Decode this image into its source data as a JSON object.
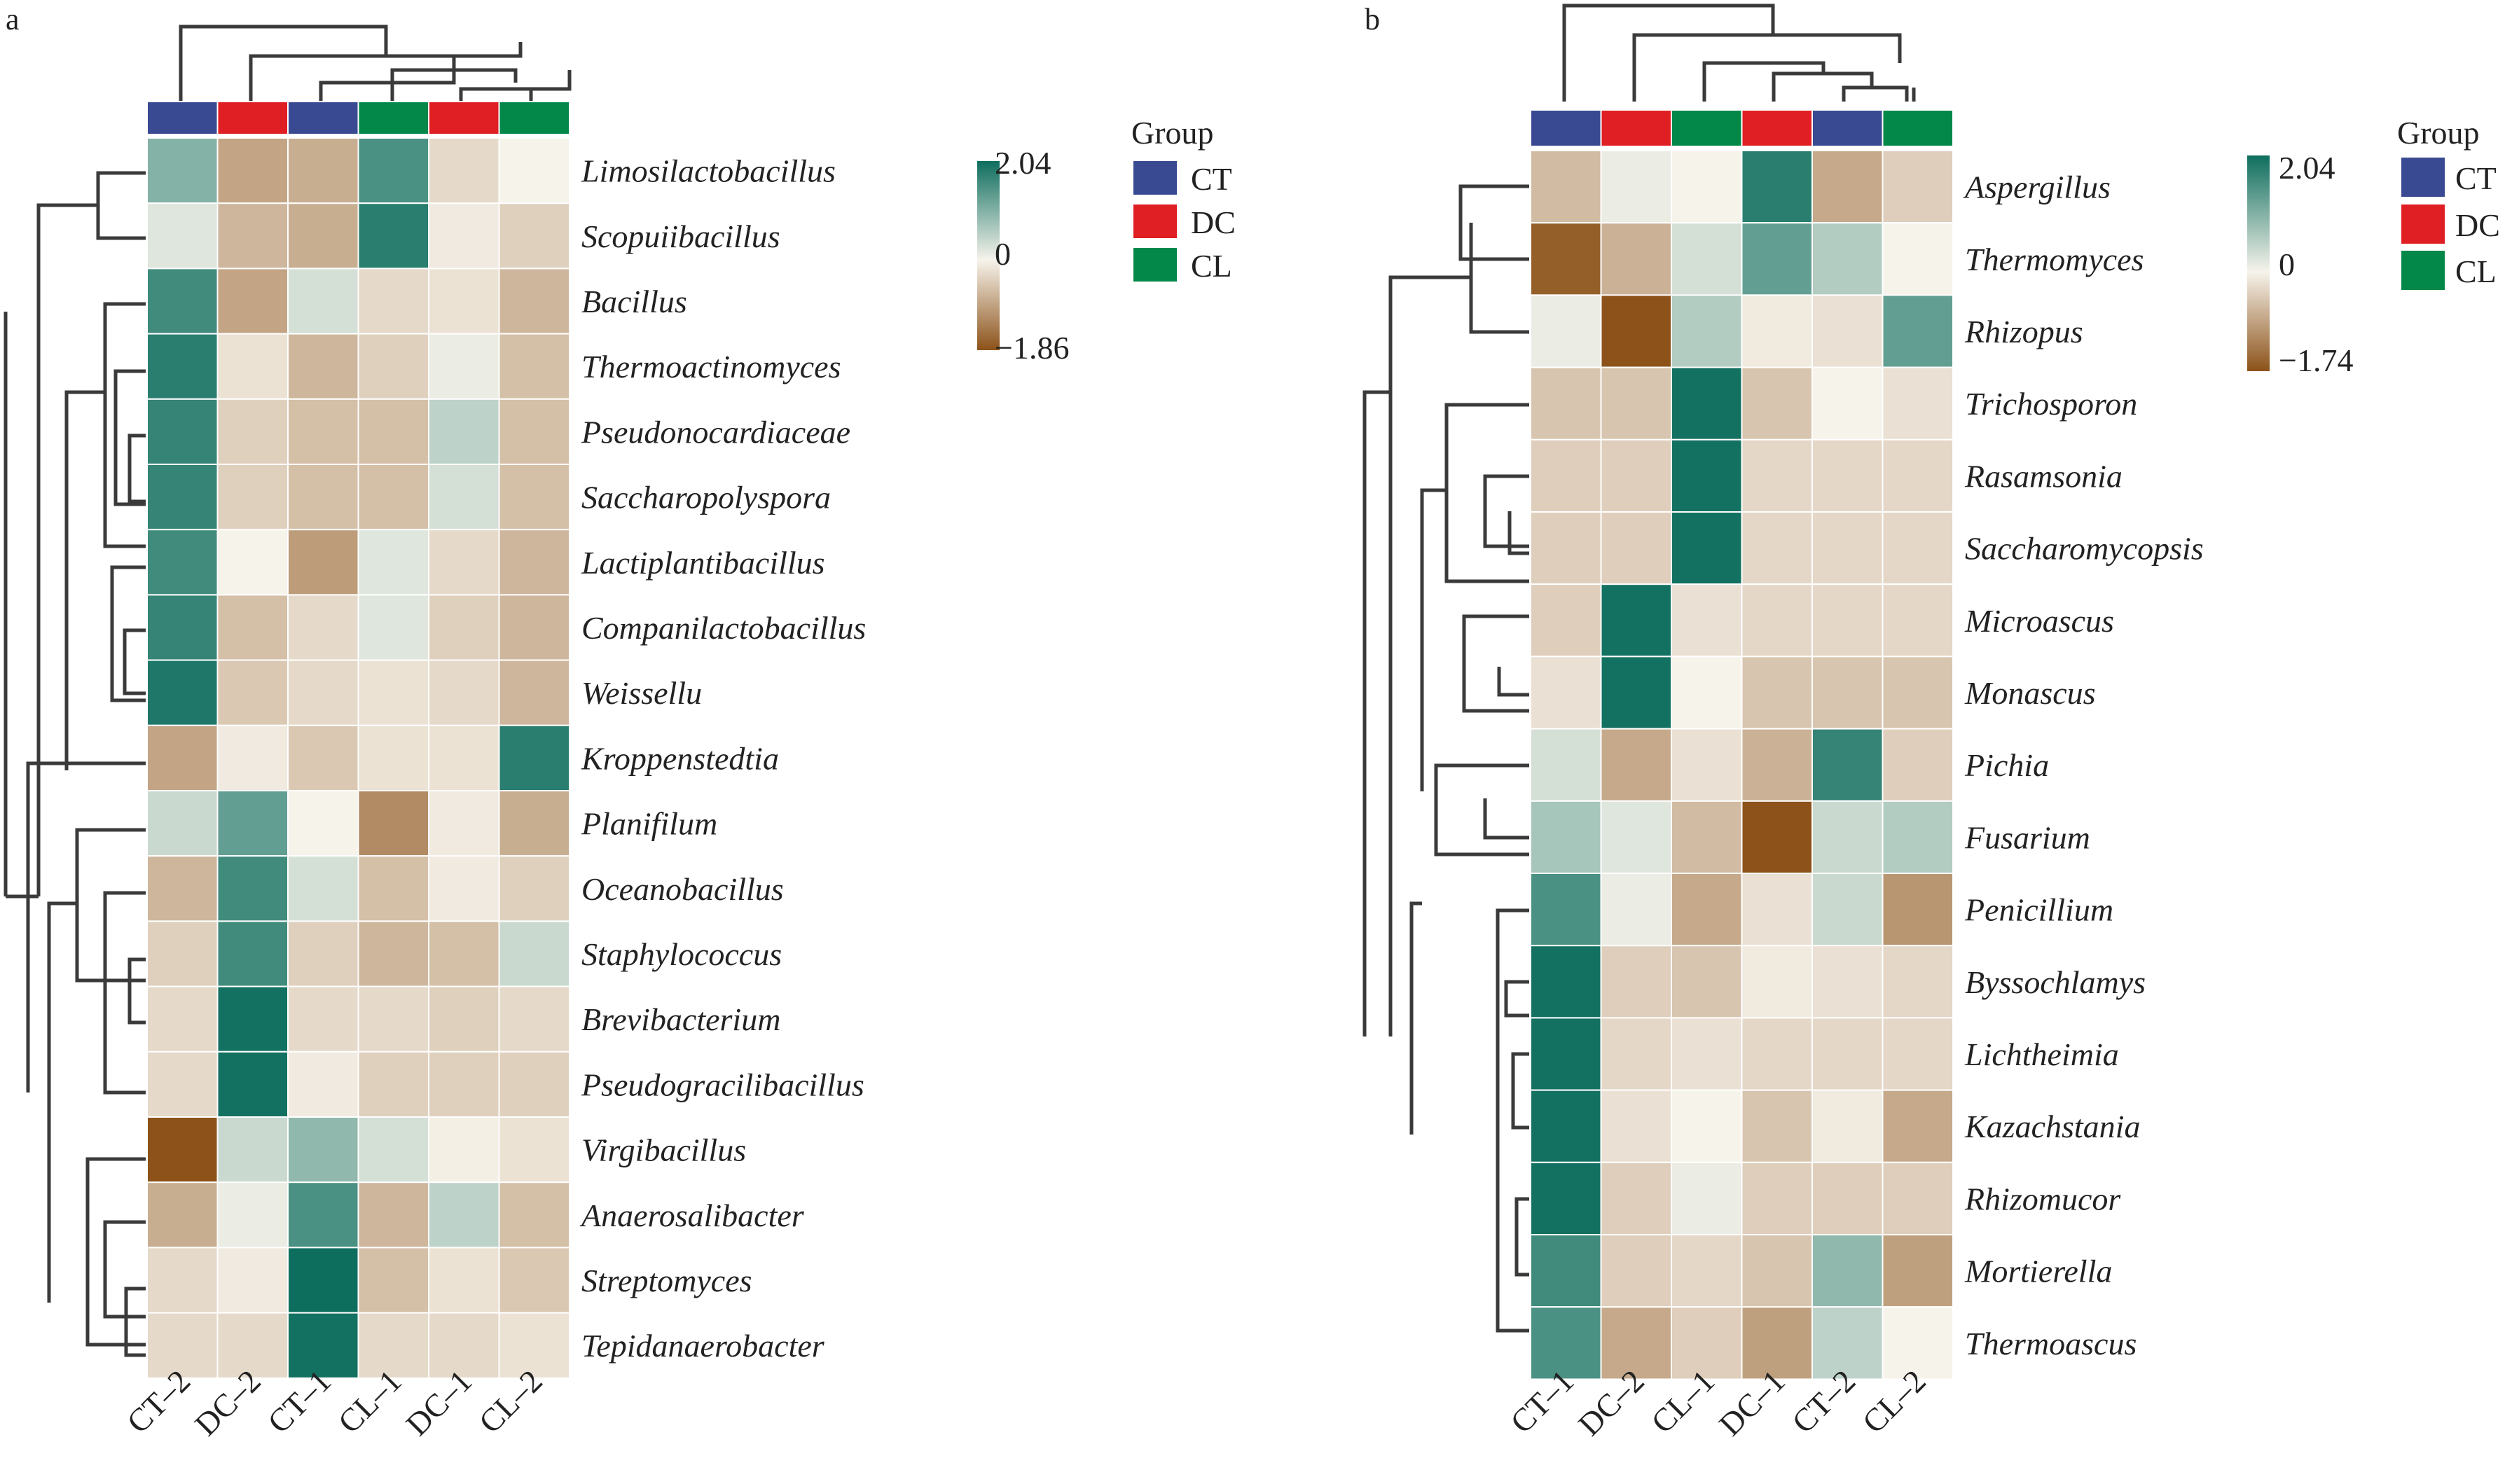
{
  "chart_data": [
    {
      "panel": "a",
      "type": "heatmap",
      "columns": [
        "CT–2",
        "DC–2",
        "CT–1",
        "CL–1",
        "DC–1",
        "CL–2"
      ],
      "column_groups": [
        "CT",
        "DC",
        "CT",
        "CL",
        "DC",
        "CL"
      ],
      "rows": [
        "Limosilactobacillus",
        "Scopuiibacillus",
        "Bacillus",
        "Thermoactinomyces",
        "Pseudonocardiaceae",
        "Saccharopolyspora",
        "Lactiplantibacillus",
        "Companilactobacillus",
        "Weissellu",
        "Kroppenstedtia",
        "Planifilum",
        "Oceanobacillus",
        "Staphylococcus",
        "Brevibacterium",
        "Pseudogracilibacillus",
        "Virgibacillus",
        "Anaerosalibacter",
        "Streptomyces",
        "Tepidanaerobacter"
      ],
      "values": [
        [
          1.0,
          -0.9,
          -0.8,
          1.5,
          -0.3,
          0.0
        ],
        [
          0.2,
          -0.7,
          -0.8,
          1.8,
          -0.1,
          -0.4
        ],
        [
          1.6,
          -0.9,
          0.3,
          -0.3,
          -0.2,
          -0.7
        ],
        [
          1.8,
          -0.2,
          -0.7,
          -0.4,
          0.1,
          -0.6
        ],
        [
          1.7,
          -0.4,
          -0.6,
          -0.6,
          0.5,
          -0.6
        ],
        [
          1.7,
          -0.4,
          -0.6,
          -0.6,
          0.3,
          -0.6
        ],
        [
          1.6,
          0.0,
          -1.0,
          0.2,
          -0.3,
          -0.7
        ],
        [
          1.7,
          -0.6,
          -0.3,
          0.2,
          -0.4,
          -0.7
        ],
        [
          1.9,
          -0.5,
          -0.3,
          -0.2,
          -0.3,
          -0.7
        ],
        [
          -0.9,
          -0.1,
          -0.5,
          -0.2,
          -0.2,
          1.8
        ],
        [
          0.4,
          1.3,
          0.0,
          -1.2,
          -0.1,
          -0.8
        ],
        [
          -0.7,
          1.6,
          0.3,
          -0.6,
          -0.1,
          -0.4
        ],
        [
          -0.4,
          1.6,
          -0.4,
          -0.7,
          -0.6,
          0.4
        ],
        [
          -0.3,
          2.0,
          -0.3,
          -0.3,
          -0.4,
          -0.3
        ],
        [
          -0.3,
          2.0,
          -0.1,
          -0.4,
          -0.4,
          -0.4
        ],
        [
          -1.86,
          0.4,
          0.9,
          0.3,
          -0.05,
          -0.2
        ],
        [
          -0.8,
          0.1,
          1.5,
          -0.7,
          0.5,
          -0.6
        ],
        [
          -0.3,
          -0.1,
          2.04,
          -0.6,
          -0.2,
          -0.5
        ],
        [
          -0.3,
          -0.3,
          2.0,
          -0.3,
          -0.3,
          -0.2
        ]
      ],
      "colorbar": {
        "max": 2.04,
        "mid": 0,
        "min": -1.86,
        "max_label": "2.04",
        "mid_label": "0",
        "min_label": "−1.86"
      },
      "legend": {
        "title": "Group",
        "items": [
          {
            "label": "CT",
            "color": "#3a4a92"
          },
          {
            "label": "DC",
            "color": "#e01f24"
          },
          {
            "label": "CL",
            "color": "#04884a"
          }
        ]
      }
    },
    {
      "panel": "b",
      "type": "heatmap",
      "columns": [
        "CT–1",
        "DC–2",
        "CL–1",
        "DC–1",
        "CT–2",
        "CL–2"
      ],
      "column_groups": [
        "CT",
        "DC",
        "CL",
        "DC",
        "CT",
        "CL"
      ],
      "rows": [
        "Aspergillus",
        "Thermomyces",
        "Rhizopus",
        "Trichosporon",
        "Rasamsonia",
        "Saccharomycopsis",
        "Microascus",
        "Monascus",
        "Pichia",
        "Fusarium",
        "Penicillium",
        "Byssochlamys",
        "Lichtheimia",
        "Kazachstania",
        "Rhizomucor",
        "Mortierella",
        "Thermoascus"
      ],
      "values": [
        [
          -0.6,
          0.1,
          0.0,
          1.8,
          -0.8,
          -0.4
        ],
        [
          -1.6,
          -0.7,
          0.3,
          1.3,
          0.6,
          0.0
        ],
        [
          0.1,
          -1.74,
          0.6,
          -0.1,
          -0.2,
          1.3
        ],
        [
          -0.5,
          -0.5,
          2.0,
          -0.5,
          0.0,
          -0.2
        ],
        [
          -0.4,
          -0.4,
          2.0,
          -0.3,
          -0.3,
          -0.3
        ],
        [
          -0.4,
          -0.4,
          2.0,
          -0.3,
          -0.3,
          -0.3
        ],
        [
          -0.4,
          2.0,
          -0.2,
          -0.3,
          -0.3,
          -0.3
        ],
        [
          -0.2,
          2.0,
          0.0,
          -0.5,
          -0.5,
          -0.5
        ],
        [
          0.3,
          -0.8,
          -0.2,
          -0.7,
          1.7,
          -0.4
        ],
        [
          0.7,
          0.2,
          -0.6,
          -1.74,
          0.4,
          0.6
        ],
        [
          1.5,
          0.1,
          -0.8,
          -0.2,
          0.4,
          -1.0
        ],
        [
          2.0,
          -0.4,
          -0.5,
          -0.1,
          -0.2,
          -0.3
        ],
        [
          2.0,
          -0.3,
          -0.2,
          -0.3,
          -0.3,
          -0.3
        ],
        [
          2.0,
          -0.2,
          0.0,
          -0.5,
          -0.1,
          -0.8
        ],
        [
          2.0,
          -0.4,
          0.1,
          -0.4,
          -0.4,
          -0.4
        ],
        [
          1.6,
          -0.4,
          -0.3,
          -0.5,
          0.9,
          -0.9
        ],
        [
          1.5,
          -0.8,
          -0.4,
          -0.9,
          0.5,
          0.0
        ]
      ],
      "colorbar": {
        "max": 2.04,
        "mid": 0,
        "min": -1.74,
        "max_label": "2.04",
        "mid_label": "0",
        "min_label": "−1.74"
      },
      "legend": {
        "title": "Group",
        "items": [
          {
            "label": "CT",
            "color": "#3a4a92"
          },
          {
            "label": "DC",
            "color": "#e01f24"
          },
          {
            "label": "CL",
            "color": "#04884a"
          }
        ]
      }
    }
  ],
  "colors": {
    "high": "#0e6e5e",
    "mid": "#f6f3eb",
    "low": "#8c5219",
    "dendrogram": "#3a3a3a"
  }
}
